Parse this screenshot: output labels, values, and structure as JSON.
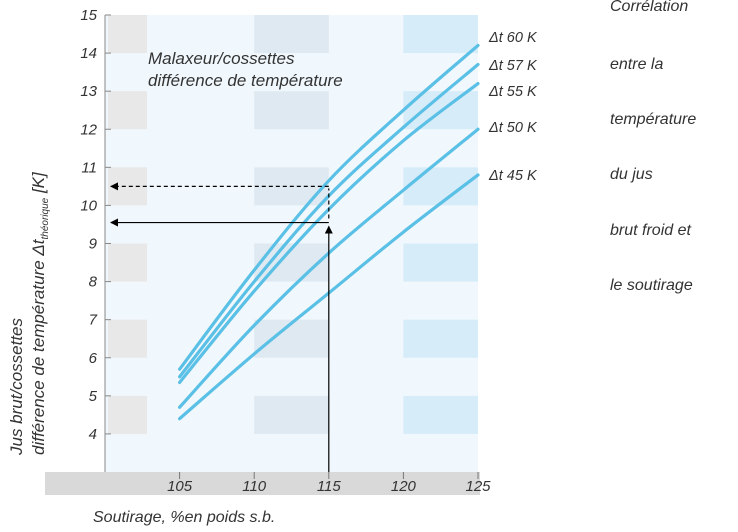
{
  "chart_data": {
    "type": "line",
    "title": "Malaxeur/cossettes\ndifférence de température",
    "xlabel": "Soutirage, %en poids s.b.",
    "ylabel_line1": "Jus brut/cossettes",
    "ylabel_line2_main": "différence de température Δt",
    "ylabel_line2_sub": "théorique",
    "ylabel_line2_unit": "[K]",
    "xlim": [
      100,
      125
    ],
    "ylim": [
      3,
      15
    ],
    "x_ticks": [
      105,
      110,
      115,
      120,
      125
    ],
    "y_ticks": [
      4,
      5,
      6,
      7,
      8,
      9,
      10,
      11,
      12,
      13,
      14,
      15
    ],
    "series": [
      {
        "name": "Δt 60 K",
        "x": [
          105,
          110,
          115,
          120,
          125
        ],
        "y": [
          5.7,
          8.3,
          10.65,
          12.5,
          14.2
        ]
      },
      {
        "name": "Δt 57 K",
        "x": [
          105,
          110,
          115,
          120,
          125
        ],
        "y": [
          5.5,
          8.0,
          10.25,
          12.05,
          13.7
        ]
      },
      {
        "name": "Δt 55 K",
        "x": [
          105,
          110,
          115,
          120,
          125
        ],
        "y": [
          5.35,
          7.75,
          9.9,
          11.7,
          13.2
        ]
      },
      {
        "name": "Δt 50 K",
        "x": [
          105,
          110,
          115,
          120,
          125
        ],
        "y": [
          4.7,
          6.85,
          8.75,
          10.4,
          12.0
        ]
      },
      {
        "name": "Δt 45 K",
        "x": [
          105,
          110,
          115,
          120,
          125
        ],
        "y": [
          4.4,
          6.1,
          7.7,
          9.3,
          10.8
        ]
      }
    ],
    "annotations": {
      "reading_x": 115,
      "dashed_reading_y": 10.5,
      "solid_reading_y": 9.55
    },
    "colors": {
      "line": "#5bc0e6",
      "plot_bg": "#f1f8fd",
      "axis_band": "#d9d9d9",
      "stripe_grey": "#e8e8e8",
      "stripe_blue": "#d6ecf9",
      "stripe_mid": "#dfe9f1"
    }
  },
  "side_text": [
    "Corrélation",
    "entre la",
    "température",
    "du jus",
    "brut froid et",
    "le soutirage"
  ]
}
